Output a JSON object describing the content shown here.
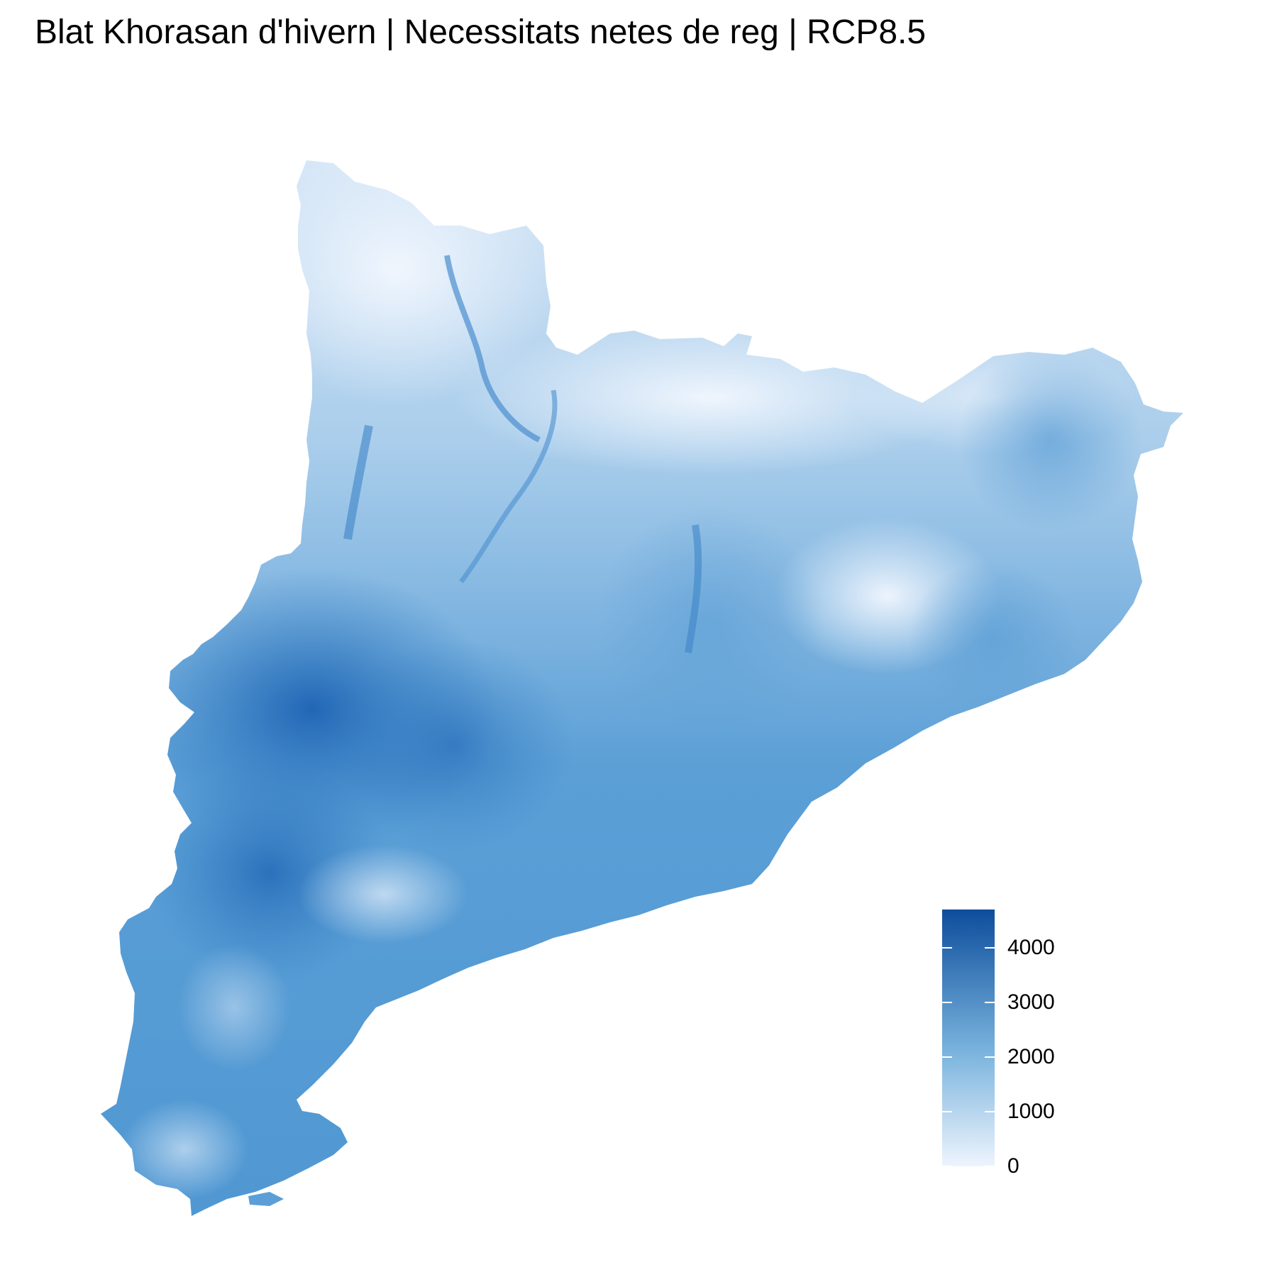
{
  "title": "Blat Khorasan d'hivern | Necessitats netes de reg | RCP8.5",
  "legend": {
    "min": 0,
    "max": 4700,
    "ticks": [
      {
        "value": 0,
        "label": "0"
      },
      {
        "value": 1000,
        "label": "1000"
      },
      {
        "value": 2000,
        "label": "2000"
      },
      {
        "value": 3000,
        "label": "3000"
      },
      {
        "value": 4000,
        "label": "4000"
      }
    ],
    "colors": {
      "low": "#eef4fd",
      "mid": "#79b3dd",
      "high": "#0d4d9c"
    }
  }
}
